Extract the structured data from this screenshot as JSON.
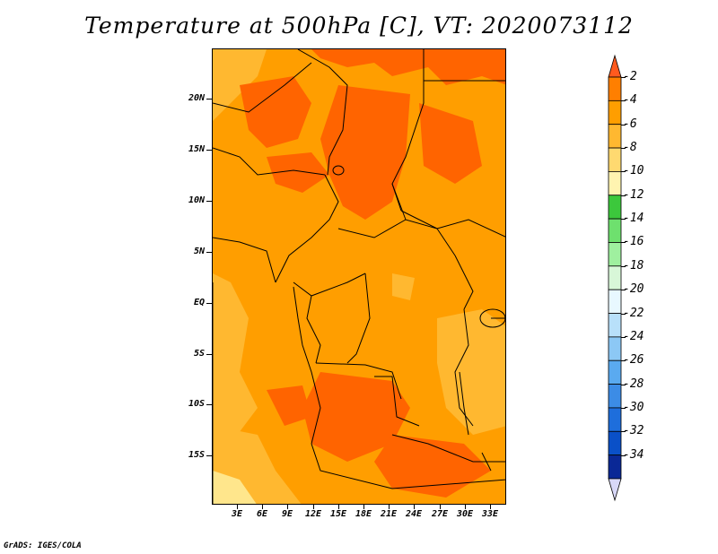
{
  "title": "Temperature at 500hPa [C], VT: 2020073112",
  "credit": "GrADS: IGES/COLA",
  "map": {
    "lat_labels": [
      "20N",
      "15N",
      "10N",
      "5N",
      "EQ",
      "5S",
      "10S",
      "15S"
    ],
    "lon_labels": [
      "3E",
      "6E",
      "9E",
      "12E",
      "15E",
      "18E",
      "21E",
      "24E",
      "27E",
      "30E",
      "33E"
    ]
  },
  "colorbar": {
    "labels": [
      "-2",
      "-4",
      "-6",
      "-8",
      "-10",
      "-12",
      "-14",
      "-16",
      "-18",
      "-20",
      "-22",
      "-24",
      "-26",
      "-28",
      "-30",
      "-32",
      "-34"
    ],
    "colors": [
      "#ff5a1e",
      "#ff7f00",
      "#ff9e00",
      "#ffb830",
      "#ffd970",
      "#fff4b0",
      "#3cc83c",
      "#6ee06e",
      "#9ff09f",
      "#d8f7d8",
      "#e8f8ff",
      "#b8e0fa",
      "#8cc8f5",
      "#5aaaf0",
      "#3c8ce6",
      "#1e6edc",
      "#0a50c8",
      "#0a2896",
      "#d8d8f8"
    ]
  },
  "palette": {
    "deep_orange": "#ff6400",
    "orange": "#ff9e00",
    "light_orange": "#ffb830",
    "pale_yellow": "#ffe68c",
    "border": "#000000"
  }
}
